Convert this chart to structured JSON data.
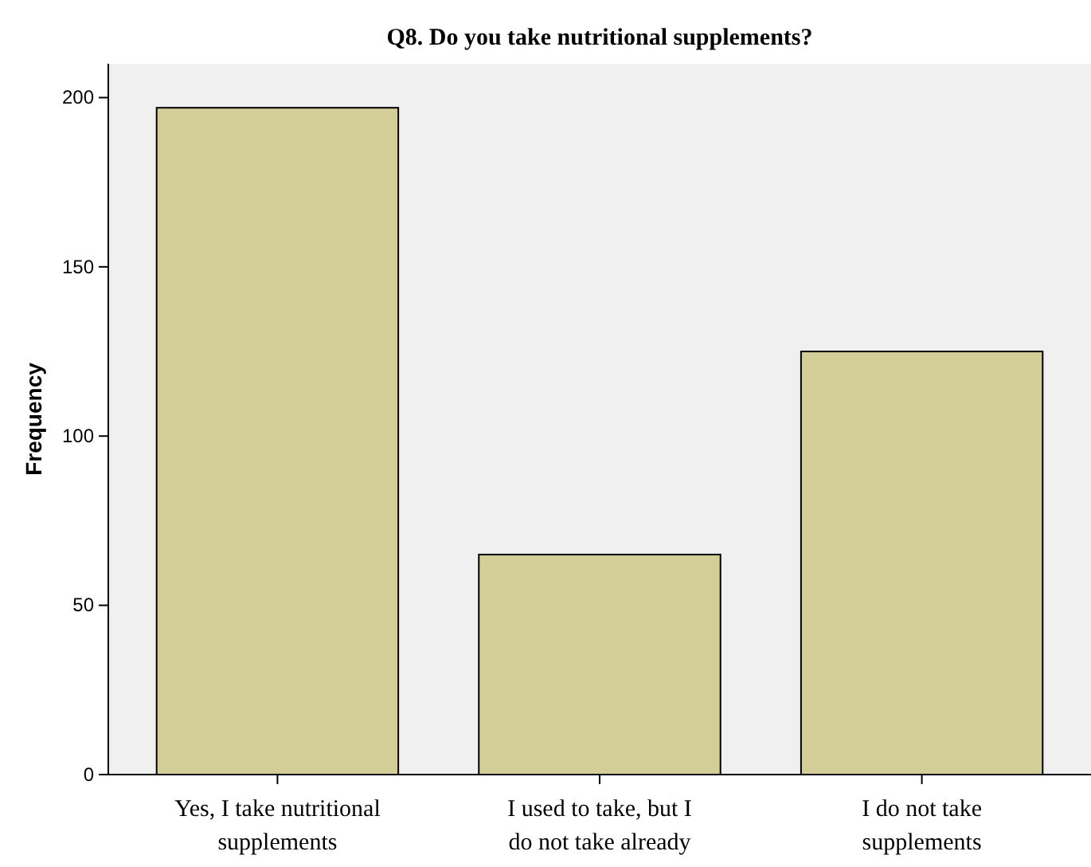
{
  "chart_data": {
    "type": "bar",
    "title": "Q8. Do you take nutritional supplements?",
    "ylabel": "Frequency",
    "categories": [
      "Yes, I take nutritional supplements",
      "I used to take, but I do not take already",
      "I do not take supplements"
    ],
    "values": [
      197,
      65,
      125
    ],
    "color": "#d3ce97",
    "ylim": [
      0,
      210
    ],
    "yticks": [
      0,
      50,
      100,
      150,
      200
    ],
    "grid": false
  }
}
